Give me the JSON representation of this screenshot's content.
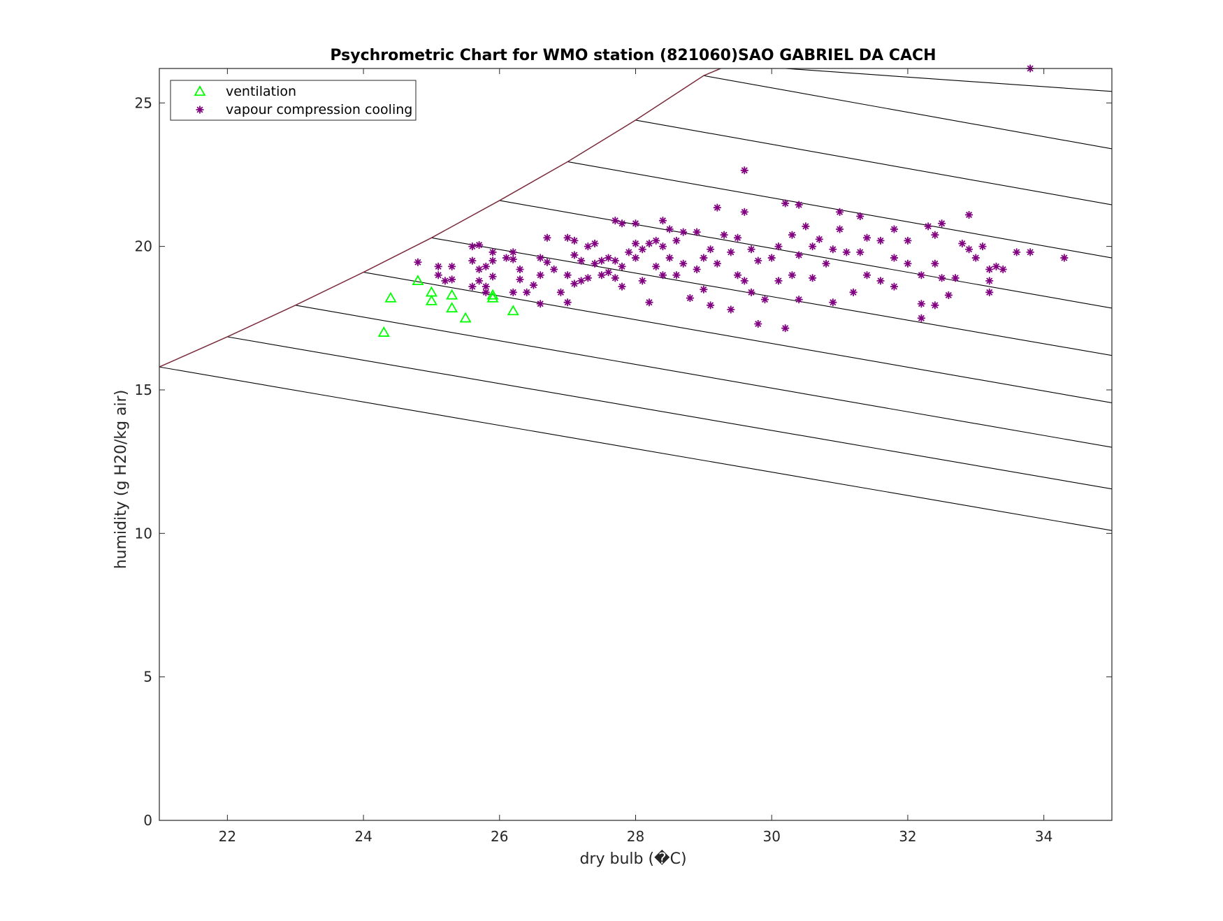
{
  "chart_data": {
    "type": "scatter",
    "title": "Psychrometric Chart for WMO station (821060)SAO GABRIEL DA CACH",
    "xlabel": "dry bulb (�C)",
    "ylabel": "humidity (g H20/kg air)",
    "xlim": [
      21,
      35
    ],
    "ylim": [
      0,
      26.2
    ],
    "xticks": [
      22,
      24,
      26,
      28,
      30,
      32,
      34
    ],
    "yticks": [
      0,
      5,
      10,
      15,
      20,
      25
    ],
    "grid": false,
    "legend_position": "top-left",
    "colors": {
      "ventilation": "#00ff00",
      "vapour_compression": "#800080",
      "saturation_curve": "#7a2a3a",
      "enthalpy_lines": "#000000",
      "axes": "#262626"
    },
    "saturation_curve": {
      "x": [
        21,
        22,
        23,
        24,
        25,
        26,
        27,
        28,
        29,
        29.25
      ],
      "y": [
        15.8,
        16.85,
        17.95,
        19.1,
        20.3,
        21.6,
        22.95,
        24.4,
        25.95,
        26.2
      ]
    },
    "enthalpy_lines": [
      {
        "x": [
          21,
          35
        ],
        "y": [
          15.8,
          10.1
        ]
      },
      {
        "x": [
          22,
          35
        ],
        "y": [
          16.85,
          11.55
        ]
      },
      {
        "x": [
          23,
          35
        ],
        "y": [
          17.95,
          13.0
        ]
      },
      {
        "x": [
          24,
          35
        ],
        "y": [
          19.1,
          14.55
        ]
      },
      {
        "x": [
          25,
          35
        ],
        "y": [
          20.3,
          16.2
        ]
      },
      {
        "x": [
          26,
          35
        ],
        "y": [
          21.6,
          17.85
        ]
      },
      {
        "x": [
          27,
          35
        ],
        "y": [
          22.95,
          19.6
        ]
      },
      {
        "x": [
          28,
          35
        ],
        "y": [
          24.4,
          21.45
        ]
      },
      {
        "x": [
          29,
          35
        ],
        "y": [
          25.95,
          23.4
        ]
      },
      {
        "x": [
          30.2,
          35
        ],
        "y": [
          26.2,
          25.4
        ]
      }
    ],
    "series": [
      {
        "name": "ventilation",
        "marker": "triangle",
        "points": [
          [
            24.3,
            17.0
          ],
          [
            24.4,
            18.2
          ],
          [
            24.8,
            18.8
          ],
          [
            25.0,
            18.4
          ],
          [
            25.0,
            18.1
          ],
          [
            25.3,
            18.3
          ],
          [
            25.3,
            17.85
          ],
          [
            25.5,
            17.5
          ],
          [
            25.9,
            18.3
          ],
          [
            25.9,
            18.2
          ],
          [
            26.2,
            17.75
          ]
        ]
      },
      {
        "name": "vapour compression cooling",
        "marker": "asterisk",
        "points": [
          [
            24.8,
            19.45
          ],
          [
            25.1,
            19.3
          ],
          [
            25.1,
            19.0
          ],
          [
            25.2,
            18.8
          ],
          [
            25.3,
            19.3
          ],
          [
            25.3,
            18.85
          ],
          [
            25.6,
            20.0
          ],
          [
            25.6,
            19.5
          ],
          [
            25.6,
            18.6
          ],
          [
            25.7,
            20.05
          ],
          [
            25.7,
            19.2
          ],
          [
            25.7,
            18.8
          ],
          [
            25.8,
            19.3
          ],
          [
            25.8,
            18.6
          ],
          [
            25.8,
            18.4
          ],
          [
            25.9,
            19.8
          ],
          [
            25.9,
            19.5
          ],
          [
            25.9,
            18.95
          ],
          [
            26.1,
            19.6
          ],
          [
            26.2,
            19.8
          ],
          [
            26.2,
            19.55
          ],
          [
            26.2,
            18.4
          ],
          [
            26.3,
            19.2
          ],
          [
            26.3,
            18.85
          ],
          [
            26.4,
            18.4
          ],
          [
            26.5,
            18.65
          ],
          [
            26.6,
            19.6
          ],
          [
            26.6,
            19.0
          ],
          [
            26.6,
            18.0
          ],
          [
            26.7,
            20.3
          ],
          [
            26.7,
            19.45
          ],
          [
            26.8,
            19.2
          ],
          [
            26.9,
            18.4
          ],
          [
            27.0,
            20.3
          ],
          [
            27.0,
            19.0
          ],
          [
            27.0,
            18.05
          ],
          [
            27.1,
            20.2
          ],
          [
            27.1,
            19.7
          ],
          [
            27.1,
            18.7
          ],
          [
            27.2,
            19.5
          ],
          [
            27.2,
            18.8
          ],
          [
            27.3,
            20.0
          ],
          [
            27.3,
            18.9
          ],
          [
            27.4,
            20.1
          ],
          [
            27.4,
            19.4
          ],
          [
            27.5,
            19.5
          ],
          [
            27.5,
            19.0
          ],
          [
            27.6,
            19.6
          ],
          [
            27.6,
            19.1
          ],
          [
            27.7,
            20.9
          ],
          [
            27.7,
            19.5
          ],
          [
            27.7,
            18.9
          ],
          [
            27.8,
            20.8
          ],
          [
            27.8,
            19.3
          ],
          [
            27.8,
            18.6
          ],
          [
            27.9,
            19.8
          ],
          [
            28.0,
            20.8
          ],
          [
            28.0,
            20.1
          ],
          [
            28.0,
            19.6
          ],
          [
            28.1,
            19.9
          ],
          [
            28.1,
            18.8
          ],
          [
            28.2,
            20.1
          ],
          [
            28.2,
            18.05
          ],
          [
            28.3,
            20.2
          ],
          [
            28.3,
            19.3
          ],
          [
            28.4,
            20.9
          ],
          [
            28.4,
            20.0
          ],
          [
            28.4,
            19.0
          ],
          [
            28.5,
            20.6
          ],
          [
            28.5,
            19.6
          ],
          [
            28.6,
            20.2
          ],
          [
            28.6,
            19.0
          ],
          [
            28.7,
            20.5
          ],
          [
            28.7,
            19.4
          ],
          [
            28.8,
            18.2
          ],
          [
            28.9,
            20.5
          ],
          [
            28.9,
            19.2
          ],
          [
            29.0,
            19.6
          ],
          [
            29.0,
            18.5
          ],
          [
            29.1,
            19.9
          ],
          [
            29.1,
            17.95
          ],
          [
            29.2,
            21.35
          ],
          [
            29.2,
            19.4
          ],
          [
            29.3,
            20.4
          ],
          [
            29.4,
            17.8
          ],
          [
            29.4,
            19.8
          ],
          [
            29.5,
            20.3
          ],
          [
            29.5,
            19.0
          ],
          [
            29.6,
            22.65
          ],
          [
            29.6,
            21.2
          ],
          [
            29.6,
            18.8
          ],
          [
            29.7,
            19.9
          ],
          [
            29.7,
            18.4
          ],
          [
            29.8,
            19.5
          ],
          [
            29.8,
            17.3
          ],
          [
            29.9,
            18.15
          ],
          [
            30.0,
            19.6
          ],
          [
            30.1,
            20.0
          ],
          [
            30.1,
            18.8
          ],
          [
            30.2,
            21.5
          ],
          [
            30.2,
            17.15
          ],
          [
            30.3,
            20.4
          ],
          [
            30.3,
            19.0
          ],
          [
            30.4,
            21.45
          ],
          [
            30.4,
            19.7
          ],
          [
            30.4,
            18.15
          ],
          [
            30.5,
            20.7
          ],
          [
            30.6,
            20.0
          ],
          [
            30.6,
            18.9
          ],
          [
            30.7,
            20.25
          ],
          [
            30.8,
            19.4
          ],
          [
            30.9,
            19.9
          ],
          [
            30.9,
            18.05
          ],
          [
            31.0,
            21.2
          ],
          [
            31.0,
            20.6
          ],
          [
            31.1,
            19.8
          ],
          [
            31.2,
            18.4
          ],
          [
            31.3,
            21.05
          ],
          [
            31.3,
            19.8
          ],
          [
            31.4,
            20.3
          ],
          [
            31.4,
            19.0
          ],
          [
            31.6,
            20.2
          ],
          [
            31.6,
            18.8
          ],
          [
            31.8,
            20.6
          ],
          [
            31.8,
            19.6
          ],
          [
            31.8,
            18.6
          ],
          [
            32.0,
            20.2
          ],
          [
            32.0,
            19.4
          ],
          [
            32.2,
            19.0
          ],
          [
            32.2,
            18.0
          ],
          [
            32.2,
            17.5
          ],
          [
            32.3,
            20.7
          ],
          [
            32.4,
            20.4
          ],
          [
            32.4,
            19.4
          ],
          [
            32.4,
            17.95
          ],
          [
            32.5,
            20.8
          ],
          [
            32.5,
            18.9
          ],
          [
            32.6,
            18.3
          ],
          [
            32.7,
            18.9
          ],
          [
            32.8,
            20.1
          ],
          [
            32.9,
            21.1
          ],
          [
            32.9,
            19.9
          ],
          [
            33.0,
            19.6
          ],
          [
            33.1,
            20.0
          ],
          [
            33.2,
            19.2
          ],
          [
            33.2,
            18.8
          ],
          [
            33.2,
            18.4
          ],
          [
            33.3,
            19.3
          ],
          [
            33.4,
            19.2
          ],
          [
            33.6,
            19.8
          ],
          [
            33.8,
            26.2
          ],
          [
            33.8,
            19.8
          ],
          [
            34.3,
            19.6
          ]
        ]
      }
    ]
  }
}
